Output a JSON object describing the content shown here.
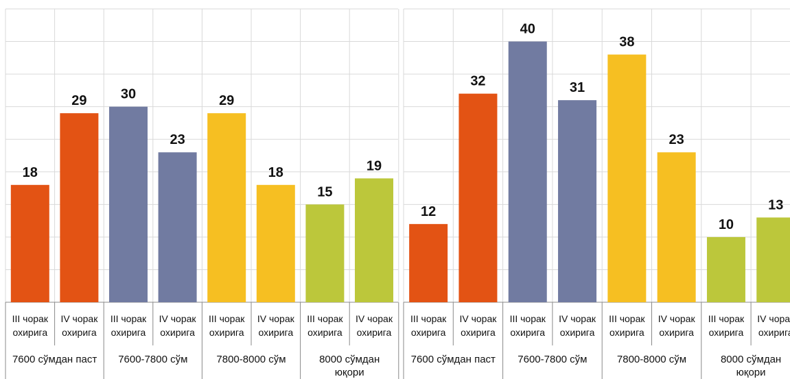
{
  "chart_data": [
    {
      "type": "bar",
      "categories": [
        "III чорак охирига",
        "IV чорак охирига",
        "III чорак охирига",
        "IV чорак охирига",
        "III чорак охирига",
        "IV чорак охирига",
        "III чорак охирига",
        "IV чорак охирига"
      ],
      "category_lines": [
        [
          "III чорак",
          "охирига"
        ],
        [
          "IV чорак",
          "охирига"
        ],
        [
          "III чорак",
          "охирига"
        ],
        [
          "IV чорак",
          "охирига"
        ],
        [
          "III чорак",
          "охирига"
        ],
        [
          "IV чорак",
          "охирига"
        ],
        [
          "III чорак",
          "охирига"
        ],
        [
          "IV чорак",
          "охирига"
        ]
      ],
      "groups": [
        {
          "label": [
            "7600 сўмдан паст"
          ],
          "color": "#E35314"
        },
        {
          "label": [
            "7600-7800 сўм"
          ],
          "color": "#717BA1"
        },
        {
          "label": [
            "7800-8000 сўм"
          ],
          "color": "#F6BF22"
        },
        {
          "label": [
            "8000 сўмдан",
            "юқори"
          ],
          "color": "#BCC73B"
        }
      ],
      "values": [
        18,
        29,
        30,
        23,
        29,
        18,
        15,
        19
      ],
      "ylim": [
        0,
        45
      ],
      "grid": true,
      "title": "",
      "xlabel": "",
      "ylabel": ""
    },
    {
      "type": "bar",
      "categories": [
        "III чорак охирига",
        "IV чорак охирига",
        "III чорак охирига",
        "IV чорак охирига",
        "III чорак охирига",
        "IV чорак охирига",
        "III чорак охирига",
        "IV чорак охирига"
      ],
      "category_lines": [
        [
          "III чорак",
          "охирига"
        ],
        [
          "IV чорак",
          "охирига"
        ],
        [
          "III чорак",
          "охирига"
        ],
        [
          "IV чорак",
          "охирига"
        ],
        [
          "III чорак",
          "охирига"
        ],
        [
          "IV чорак",
          "охирига"
        ],
        [
          "III чорак",
          "охирига"
        ],
        [
          "IV чорак",
          "охирига"
        ]
      ],
      "groups": [
        {
          "label": [
            "7600 сўмдан паст"
          ],
          "color": "#E35314"
        },
        {
          "label": [
            "7600-7800 сўм"
          ],
          "color": "#717BA1"
        },
        {
          "label": [
            "7800-8000 сўм"
          ],
          "color": "#F6BF22"
        },
        {
          "label": [
            "8000 сўмдан",
            "юқори"
          ],
          "color": "#BCC73B"
        }
      ],
      "values": [
        12,
        32,
        40,
        31,
        38,
        23,
        10,
        13
      ],
      "ylim": [
        0,
        45
      ],
      "grid": true,
      "title": "",
      "xlabel": "",
      "ylabel": ""
    }
  ]
}
